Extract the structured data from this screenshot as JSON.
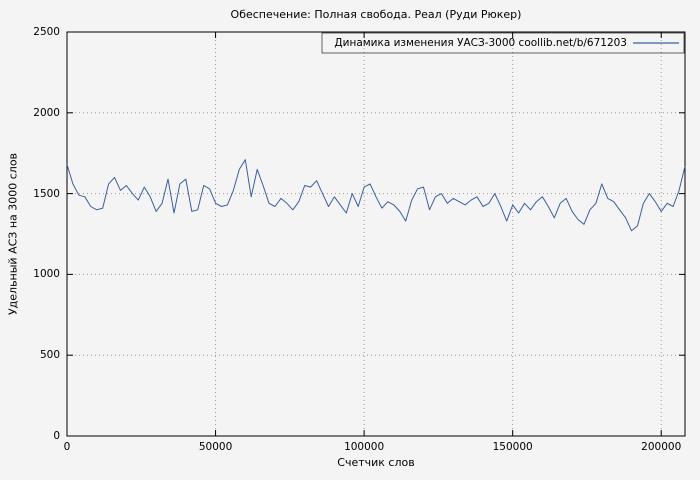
{
  "chart_data": {
    "type": "line",
    "title": "Обеспечение: Полная свобода. Реал (Руди Рюкер)",
    "legend": "Динамика изменения УАСЗ-3000 coollib.net/b/671203",
    "xlabel": "Счетчик слов",
    "ylabel": "Удельный АСЗ на 3000 слов",
    "xlim": [
      0,
      208000
    ],
    "ylim": [
      0,
      2500
    ],
    "xticks": [
      0,
      50000,
      100000,
      150000,
      200000
    ],
    "yticks": [
      0,
      500,
      1000,
      1500,
      2000,
      2500
    ],
    "grid": true,
    "legend_position": "top-right",
    "line_color": "#3b5f9e",
    "background": "#f4f4f4",
    "x": [
      0,
      2000,
      4000,
      6000,
      8000,
      10000,
      12000,
      14000,
      16000,
      18000,
      20000,
      22000,
      24000,
      26000,
      28000,
      30000,
      32000,
      34000,
      36000,
      38000,
      40000,
      42000,
      44000,
      46000,
      48000,
      50000,
      52000,
      54000,
      56000,
      58000,
      60000,
      62000,
      64000,
      66000,
      68000,
      70000,
      72000,
      74000,
      76000,
      78000,
      80000,
      82000,
      84000,
      86000,
      88000,
      90000,
      92000,
      94000,
      96000,
      98000,
      100000,
      102000,
      104000,
      106000,
      108000,
      110000,
      112000,
      114000,
      116000,
      118000,
      120000,
      122000,
      124000,
      126000,
      128000,
      130000,
      132000,
      134000,
      136000,
      138000,
      140000,
      142000,
      144000,
      146000,
      148000,
      150000,
      152000,
      154000,
      156000,
      158000,
      160000,
      162000,
      164000,
      166000,
      168000,
      170000,
      172000,
      174000,
      176000,
      178000,
      180000,
      182000,
      184000,
      186000,
      188000,
      190000,
      192000,
      194000,
      196000,
      198000,
      200000,
      202000,
      204000,
      206000,
      208000
    ],
    "y": [
      1680,
      1560,
      1490,
      1480,
      1420,
      1400,
      1410,
      1560,
      1600,
      1520,
      1550,
      1500,
      1460,
      1540,
      1480,
      1390,
      1440,
      1590,
      1380,
      1560,
      1590,
      1390,
      1400,
      1550,
      1530,
      1440,
      1420,
      1430,
      1520,
      1650,
      1710,
      1480,
      1650,
      1550,
      1440,
      1420,
      1470,
      1440,
      1400,
      1450,
      1550,
      1540,
      1580,
      1500,
      1420,
      1480,
      1430,
      1380,
      1500,
      1420,
      1540,
      1560,
      1480,
      1410,
      1450,
      1430,
      1390,
      1330,
      1460,
      1530,
      1540,
      1400,
      1480,
      1500,
      1440,
      1470,
      1450,
      1430,
      1460,
      1480,
      1420,
      1440,
      1500,
      1420,
      1330,
      1430,
      1380,
      1440,
      1400,
      1450,
      1480,
      1420,
      1350,
      1440,
      1470,
      1390,
      1340,
      1310,
      1400,
      1440,
      1560,
      1470,
      1450,
      1400,
      1350,
      1270,
      1300,
      1440,
      1500,
      1450,
      1390,
      1440,
      1420,
      1520,
      1670
    ]
  }
}
